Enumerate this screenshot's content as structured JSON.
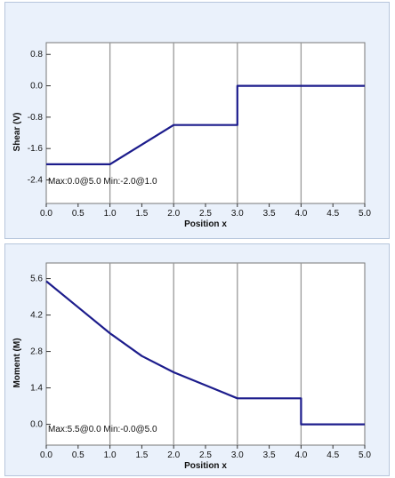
{
  "colors": {
    "panel_bg": "#eaf1fb",
    "plot_bg": "#ffffff",
    "grid": "#999999",
    "series": "#1c1c8c"
  },
  "chart_data": [
    {
      "type": "line",
      "xlabel": "Position x",
      "ylabel": "Shear (V)",
      "xlim": [
        0,
        5
      ],
      "ylim": [
        -3.0,
        1.1
      ],
      "grid": true,
      "x_ticks": [
        "0.0",
        "0.5",
        "1.0",
        "1.5",
        "2.0",
        "2.5",
        "3.0",
        "3.5",
        "4.0",
        "4.5",
        "5.0"
      ],
      "y_ticks": [
        {
          "value": 0.8,
          "label": "0.8"
        },
        {
          "value": 0.0,
          "label": "0.0"
        },
        {
          "value": -0.8,
          "label": "-0.8"
        },
        {
          "value": -1.6,
          "label": "-1.6"
        },
        {
          "value": -2.4,
          "label": "-2.4"
        }
      ],
      "annotation": "Max:0.0@5.0 Min:-2.0@1.0",
      "series": [
        {
          "x": [
            0.0,
            1.0,
            2.0,
            3.0,
            3.0,
            5.0
          ],
          "y": [
            -2.0,
            -2.0,
            -1.0,
            -1.0,
            0.0,
            0.0
          ]
        }
      ]
    },
    {
      "type": "line",
      "xlabel": "Position x",
      "ylabel": "Moment (M)",
      "xlim": [
        0,
        5
      ],
      "ylim": [
        -0.8,
        6.2
      ],
      "grid": true,
      "x_ticks": [
        "0.0",
        "0.5",
        "1.0",
        "1.5",
        "2.0",
        "2.5",
        "3.0",
        "3.5",
        "4.0",
        "4.5",
        "5.0"
      ],
      "y_ticks": [
        {
          "value": 5.6,
          "label": "5.6"
        },
        {
          "value": 4.2,
          "label": "4.2"
        },
        {
          "value": 2.8,
          "label": "2.8"
        },
        {
          "value": 1.4,
          "label": "1.4"
        },
        {
          "value": 0.0,
          "label": "0.0"
        }
      ],
      "annotation": "Max:5.5@0.0 Min:-0.0@5.0",
      "series": [
        {
          "x": [
            0.0,
            0.5,
            1.0,
            1.5,
            2.0,
            2.5,
            3.0,
            4.0,
            4.0,
            5.0
          ],
          "y": [
            5.5,
            4.5,
            3.5,
            2.625,
            2.0,
            1.5,
            1.0,
            1.0,
            0.0,
            0.0
          ]
        }
      ]
    }
  ]
}
